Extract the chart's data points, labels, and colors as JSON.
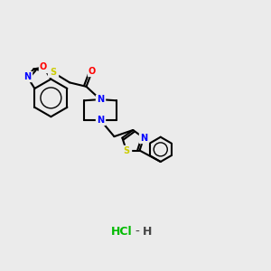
{
  "background_color": "#ebebeb",
  "atom_colors": {
    "N": "#0000ff",
    "O": "#ff0000",
    "S": "#cccc00",
    "C": "#000000",
    "H": "#000000",
    "Cl": "#00cc00"
  },
  "hcl_color": "#00bb00",
  "bond_color": "#000000",
  "bond_width": 1.5
}
